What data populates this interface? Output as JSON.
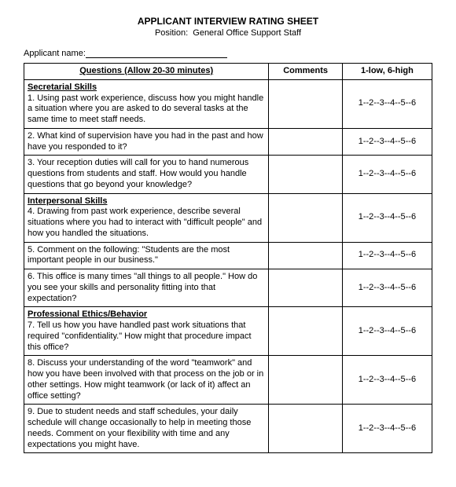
{
  "doc": {
    "title": "APPLICANT INTERVIEW RATING SHEET",
    "position_label": "Position:",
    "position_value": "General Office Support Staff",
    "applicant_label": "Applicant name:"
  },
  "table": {
    "header": {
      "questions": "Questions (Allow 20-30 minutes)",
      "comments": "Comments",
      "rating": "1-low, 6-high"
    },
    "rating_scale": "1--2--3--4--5--6",
    "rows": [
      {
        "section": "Secretarial Skills",
        "text": "1.  Using past work experience, discuss how you might handle a situation where you are asked to do several tasks at the same time to meet staff needs."
      },
      {
        "section": null,
        "text": "2. What kind of supervision have you had in the past and how have you responded to it?"
      },
      {
        "section": null,
        "text": "3.  Your reception duties will call for you to hand numerous questions from students and staff.  How would you handle questions that go beyond your knowledge?"
      },
      {
        "section": "Interpersonal Skills",
        "text": "4.  Drawing from past work experience, describe several situations where you had to interact with \"difficult people\" and how you handled the situations."
      },
      {
        "section": null,
        "text": "5.  Comment on the following:  \"Students are the most important people in our business.\""
      },
      {
        "section": null,
        "text": "6.  This office is many times \"all things to all people.\"  How do you see your skills and personality fitting into that expectation?"
      },
      {
        "section": "Professional Ethics/Behavior",
        "text": "7.  Tell us how you have handled past work situations that required \"confidentiality.\"  How might that procedure impact this office?"
      },
      {
        "section": null,
        "text": "8.  Discuss your understanding of the word \"teamwork\" and how you have been involved with that process on the job or in other settings.  How might teamwork (or lack of it) affect an office setting?"
      },
      {
        "section": null,
        "text": "9.  Due to student needs and staff schedules, your daily schedule will change occasionally to help in meeting those needs.  Comment on your flexibility with time and any expectations you might have."
      }
    ]
  }
}
